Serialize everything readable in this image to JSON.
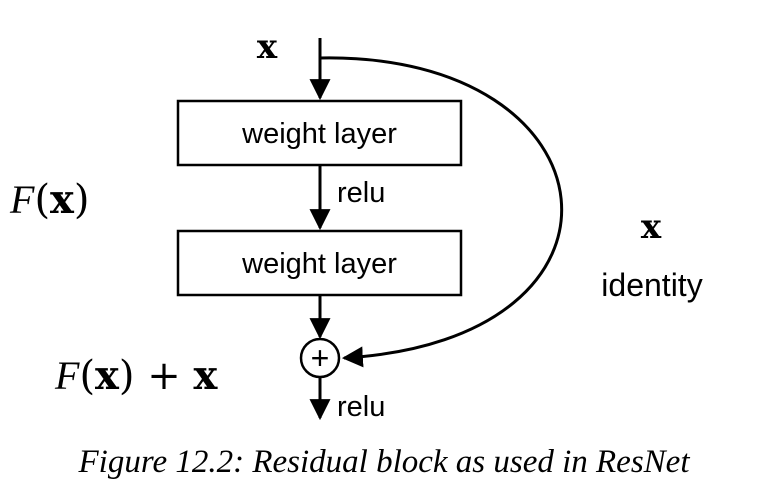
{
  "input": {
    "var": "x"
  },
  "layers": [
    {
      "label": "weight layer"
    },
    {
      "label": "weight layer"
    }
  ],
  "activations": {
    "middle": "relu",
    "output": "relu"
  },
  "function_label": {
    "func": "F",
    "open": "(",
    "var": "x",
    "close": ")"
  },
  "sum_label": {
    "func": "F",
    "open": "(",
    "var": "x",
    "close": ")",
    "plus": " + ",
    "var2": "x"
  },
  "shortcut": {
    "var": "x",
    "label": "identity"
  },
  "add_node": {
    "symbol": "+"
  },
  "caption": "Figure 12.2: Residual block as used in ResNet"
}
